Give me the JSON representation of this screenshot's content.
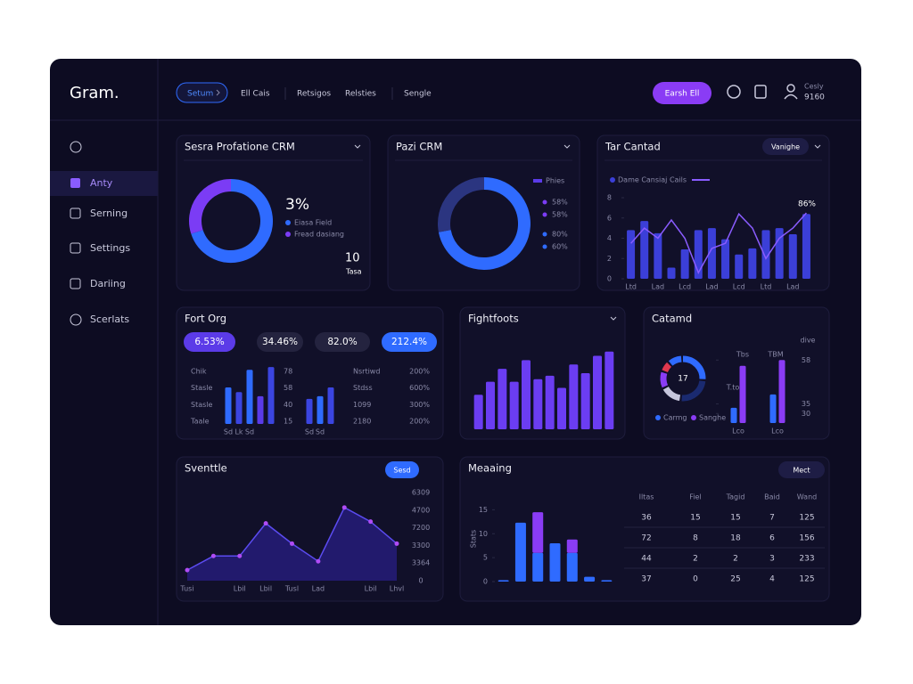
{
  "header": {
    "logo": "Gram.",
    "nav_active": "Setum",
    "nav": [
      "Ell Cais",
      "Retsigos",
      "Relsties",
      "Sengle"
    ],
    "button": "Earsh Ell",
    "user": [
      "Cesly",
      "9160"
    ]
  },
  "sidebar": [
    "Anty",
    "Serning",
    "Settings",
    "Dariing",
    "Scerlats"
  ],
  "chart_data": [
    {
      "type": "donut",
      "title": "Sesra Profatione CRM",
      "center_label": "3%",
      "categories": [
        "Eiasa Field",
        "Fread dasiang"
      ],
      "values": [
        70,
        30
      ],
      "colors": [
        "#2f6bff",
        "#7b3cf5"
      ],
      "annotations": [
        "10",
        "Tasa"
      ]
    },
    {
      "type": "donut",
      "title": "Pazi CRM",
      "values": [
        72,
        28
      ],
      "colors": [
        "#2f6bff",
        "#2b3580"
      ],
      "legend_title": "Phies",
      "legend": [
        {
          "label": "58%",
          "color": "#7b3cf5"
        },
        {
          "label": "58%",
          "color": "#7b3cf5"
        },
        {
          "label": "80%",
          "color": "#2f6bff"
        },
        {
          "label": "60%",
          "color": "#2f6bff"
        }
      ]
    },
    {
      "type": "bar",
      "title": "Tar Cantad",
      "control": "Vanighe",
      "annotation": "86%",
      "ylim": [
        0,
        8
      ],
      "yticks": [
        0,
        2,
        4,
        6,
        8
      ],
      "categories": [
        "Ltd",
        null,
        "Lad",
        null,
        "Lcd",
        null,
        "Lad",
        null,
        "Lcd",
        null,
        "Ltd",
        null,
        "Lad",
        null
      ],
      "series": [
        {
          "name": "Dame Cansiaj Cails",
          "color": "#3b3fd8",
          "values": [
            4.8,
            5.7,
            4.5,
            1.1,
            2.9,
            4.8,
            5.0,
            3.9,
            2.4,
            3.0,
            4.8,
            5.0,
            4.4,
            6.4
          ]
        },
        {
          "type": "line",
          "color": "#8a5cff",
          "values": [
            3.5,
            5.0,
            4.0,
            5.8,
            4.0,
            0.6,
            3.0,
            3.5,
            6.4,
            5.0,
            2.0,
            4.0,
            5.0,
            6.5
          ]
        }
      ]
    },
    {
      "type": "bar",
      "title": "Fort Org",
      "ylim": [
        0,
        100
      ],
      "kpis": {
        "values": [
          6.53,
          34.46,
          82.0,
          212.4
        ],
        "value_labels": [
          "6.53%",
          "34.46%",
          "82.0%",
          "212.4%"
        ]
      },
      "rows_left": {
        "labels": [
          "Chik",
          "Stasle",
          "Stasle",
          "Taale"
        ],
        "values": [
          78,
          58,
          40,
          15
        ]
      },
      "rows_right": {
        "labels": [
          "Nsrtiwd",
          "Stdss",
          "1099",
          "2180"
        ],
        "values": [
          200,
          600,
          300,
          200
        ],
        "value_labels": [
          "200%",
          "600%",
          "300%",
          "200%"
        ]
      },
      "categories": [
        "Sd",
        "Lk",
        "Sd",
        null,
        null,
        "Sd",
        "Sd",
        null
      ],
      "values": [
        54,
        47,
        80,
        41,
        84,
        37,
        41,
        54
      ],
      "colors": [
        "#2f6bff",
        "#3b45e0",
        "#2f6bff",
        "#5b3be8",
        "#3b45e0",
        "#3b45e0",
        "#2f6bff",
        "#3b45e0"
      ]
    },
    {
      "type": "bar",
      "title": "Fightfoots",
      "ylim": [
        0,
        100
      ],
      "color": "#6b3df2",
      "values": [
        40,
        55,
        70,
        55,
        80,
        58,
        62,
        48,
        75,
        65,
        85,
        90
      ]
    },
    {
      "type": "bar",
      "title": "Catamd",
      "axis_title": "dive",
      "gauge_value": 17,
      "bar_labels": [
        "Tbs",
        "TBM"
      ],
      "side_label": "T.to",
      "ylim": [
        25,
        60
      ],
      "yticks": [
        30,
        35,
        58
      ],
      "categories": [
        "Lco",
        "Lco"
      ],
      "series": [
        {
          "name": "Carmg",
          "color": "#2f6bff",
          "values": [
            33,
            40
          ]
        },
        {
          "name": "Sanghe",
          "color": "#8a3cf5",
          "values": [
            55,
            58
          ]
        }
      ]
    },
    {
      "type": "line",
      "title": "Sventtle",
      "control": "Sesd",
      "color": "#5b4bf0",
      "ylim": [
        0,
        100
      ],
      "y_labels": [
        "6309",
        "4700",
        "7200",
        "3300",
        "3364",
        "0"
      ],
      "categories": [
        "Tusi",
        null,
        "Lbil",
        "Lbil",
        "Tusl",
        "Lad",
        null,
        "Lbil",
        "Lhvl"
      ],
      "values": [
        12,
        28,
        28,
        65,
        42,
        22,
        83,
        67,
        42
      ]
    },
    {
      "type": "bar",
      "stacked": true,
      "title": "Meaaing",
      "control": "Mect",
      "y_label": "Stats",
      "ylim": [
        0,
        16
      ],
      "yticks": [
        0,
        5,
        10,
        15
      ],
      "series": [
        {
          "color": "#2f6bff",
          "values": [
            0.3,
            12.3,
            6,
            8,
            6,
            1,
            0.3
          ]
        },
        {
          "color": "#8a3cf5",
          "values": [
            0,
            0,
            8.5,
            0,
            2.8,
            0,
            0
          ]
        }
      ],
      "table": {
        "columns": [
          "Iltas",
          "Fiel",
          "Tagid",
          "Baid",
          "Wand"
        ],
        "rows": [
          [
            "36",
            "15",
            "15",
            "7",
            "125"
          ],
          [
            "72",
            "8",
            "18",
            "6",
            "156"
          ],
          [
            "44",
            "2",
            "2",
            "3",
            "233"
          ],
          [
            "37",
            "0",
            "25",
            "4",
            "125"
          ]
        ]
      }
    }
  ]
}
